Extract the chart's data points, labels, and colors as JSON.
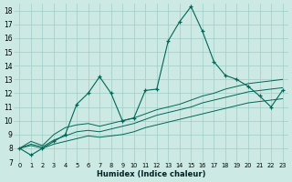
{
  "background_color": "#cce9e4",
  "grid_color": "#a0cdc7",
  "line_color": "#006655",
  "xlabel": "Humidex (Indice chaleur)",
  "xlim": [
    -0.5,
    23.5
  ],
  "ylim": [
    7,
    18.5
  ],
  "yticks": [
    7,
    8,
    9,
    10,
    11,
    12,
    13,
    14,
    15,
    16,
    17,
    18
  ],
  "xticks": [
    0,
    1,
    2,
    3,
    4,
    5,
    6,
    7,
    8,
    9,
    10,
    11,
    12,
    13,
    14,
    15,
    16,
    17,
    18,
    19,
    20,
    21,
    22,
    23
  ],
  "series_main": [
    8.0,
    7.5,
    8.0,
    8.5,
    9.0,
    11.2,
    12.0,
    13.2,
    12.0,
    10.0,
    10.2,
    12.2,
    12.3,
    15.8,
    17.2,
    18.3,
    16.5,
    14.3,
    13.3,
    13.0,
    12.5,
    11.8,
    11.0,
    12.2
  ],
  "series_lo": [
    8.0,
    8.2,
    8.0,
    8.3,
    8.5,
    8.7,
    8.9,
    8.8,
    8.9,
    9.0,
    9.2,
    9.5,
    9.7,
    9.9,
    10.1,
    10.3,
    10.5,
    10.7,
    10.9,
    11.1,
    11.3,
    11.4,
    11.5,
    11.6
  ],
  "series_mid": [
    8.0,
    8.3,
    8.1,
    8.6,
    8.9,
    9.2,
    9.3,
    9.2,
    9.4,
    9.6,
    9.8,
    10.1,
    10.4,
    10.6,
    10.8,
    11.0,
    11.3,
    11.5,
    11.7,
    11.9,
    12.1,
    12.2,
    12.3,
    12.4
  ],
  "series_hi": [
    8.0,
    8.5,
    8.2,
    9.0,
    9.5,
    9.7,
    9.8,
    9.6,
    9.8,
    10.0,
    10.2,
    10.5,
    10.8,
    11.0,
    11.2,
    11.5,
    11.8,
    12.0,
    12.3,
    12.5,
    12.7,
    12.8,
    12.9,
    13.0
  ]
}
